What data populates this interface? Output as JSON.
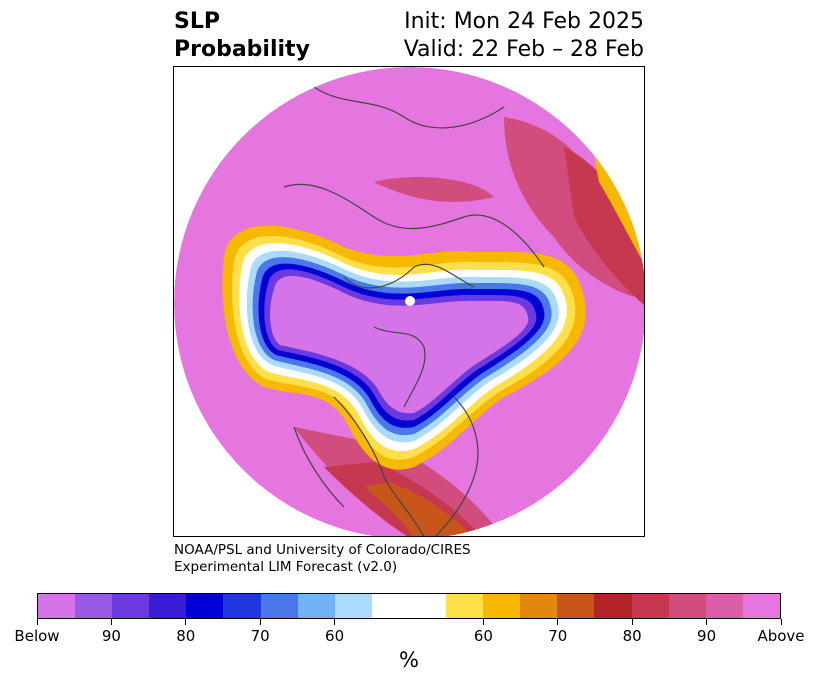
{
  "header": {
    "title_line1": "SLP",
    "title_line2": "Probability",
    "init": "Init: Mon 24 Feb 2025",
    "valid": "Valid: 22 Feb – 28 Feb"
  },
  "credit": {
    "line1": "NOAA/PSL and University of Colorado/CIRES",
    "line2": "Experimental LIM Forecast (v2.0)"
  },
  "colorbar": {
    "colors": [
      "#d573e8",
      "#9b59e2",
      "#6a3ade",
      "#3a1bd6",
      "#0000d6",
      "#2137de",
      "#4a78ea",
      "#73b2f5",
      "#aadbfd",
      "#ffffff",
      "#ffffff",
      "#ffe04a",
      "#f6b800",
      "#e3880e",
      "#c8561a",
      "#b22226",
      "#c5384f",
      "#d14d7e",
      "#db5fa8",
      "#e576df"
    ],
    "tick_labels": [
      "Below",
      "90",
      "80",
      "70",
      "60",
      "60",
      "70",
      "80",
      "90",
      "Above"
    ],
    "unit": "%"
  }
}
